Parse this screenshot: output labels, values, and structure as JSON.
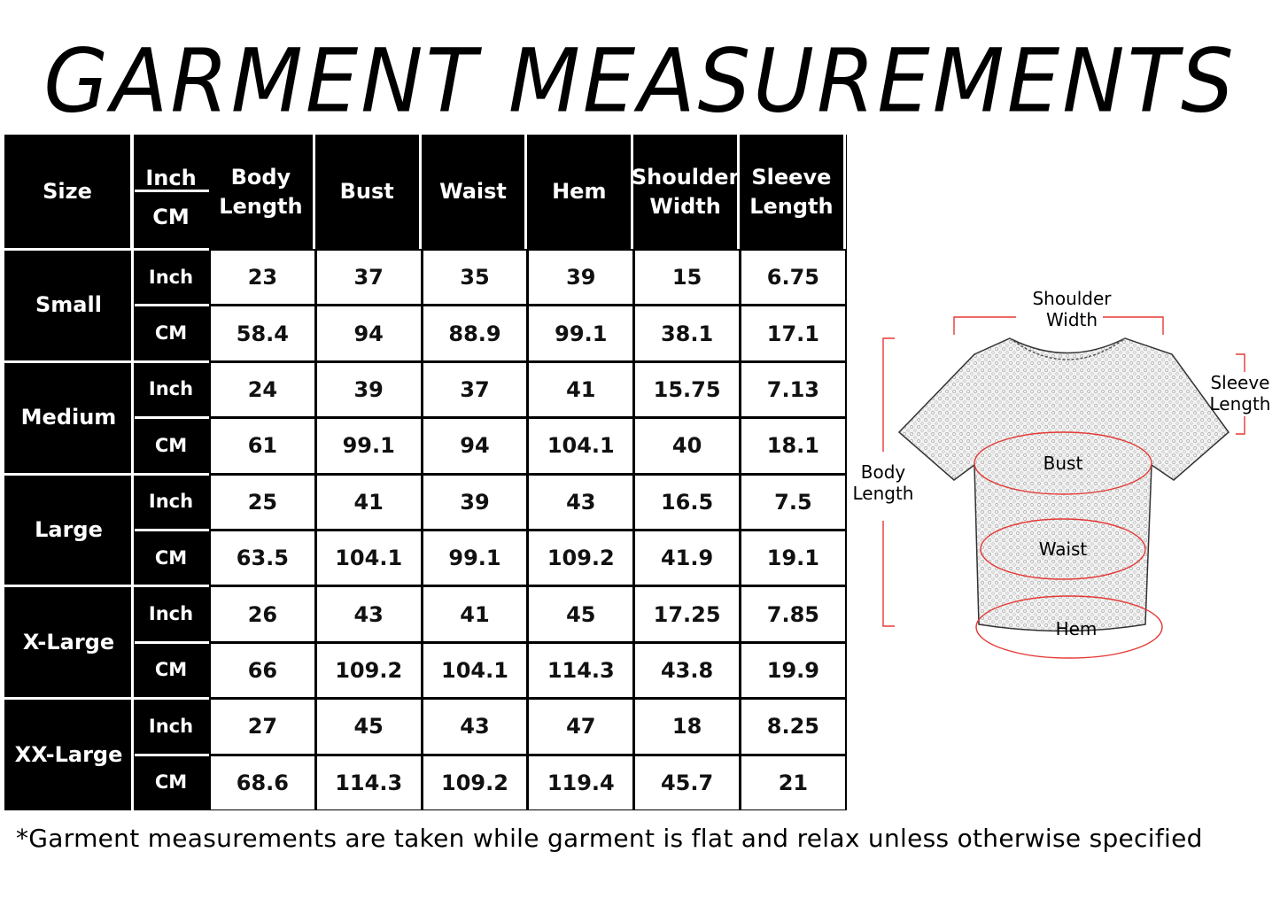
{
  "title": "GARMENT MEASUREMENTS",
  "table": {
    "header": {
      "size": "Size",
      "unit_top": "Inch",
      "unit_bottom": "CM",
      "columns": [
        "Body Length",
        "Bust",
        "Waist",
        "Hem",
        "Shoulder Width",
        "Sleeve Length"
      ]
    },
    "rows": [
      {
        "size": "Small",
        "inch_label": "Inch",
        "cm_label": "CM",
        "inch": [
          "23",
          "37",
          "35",
          "39",
          "15",
          "6.75"
        ],
        "cm": [
          "58.4",
          "94",
          "88.9",
          "99.1",
          "38.1",
          "17.1"
        ]
      },
      {
        "size": "Medium",
        "inch_label": "Inch",
        "cm_label": "CM",
        "inch": [
          "24",
          "39",
          "37",
          "41",
          "15.75",
          "7.13"
        ],
        "cm": [
          "61",
          "99.1",
          "94",
          "104.1",
          "40",
          "18.1"
        ]
      },
      {
        "size": "Large",
        "inch_label": "Inch",
        "cm_label": "CM",
        "inch": [
          "25",
          "41",
          "39",
          "43",
          "16.5",
          "7.5"
        ],
        "cm": [
          "63.5",
          "104.1",
          "99.1",
          "109.2",
          "41.9",
          "19.1"
        ]
      },
      {
        "size": "X-Large",
        "inch_label": "Inch",
        "cm_label": "CM",
        "inch": [
          "26",
          "43",
          "41",
          "45",
          "17.25",
          "7.85"
        ],
        "cm": [
          "66",
          "109.2",
          "104.1",
          "114.3",
          "43.8",
          "19.9"
        ]
      },
      {
        "size": "XX-Large",
        "inch_label": "Inch",
        "cm_label": "CM",
        "inch": [
          "27",
          "45",
          "43",
          "47",
          "18",
          "8.25"
        ],
        "cm": [
          "68.6",
          "114.3",
          "109.2",
          "119.4",
          "45.7",
          "21"
        ]
      }
    ]
  },
  "diagram": {
    "shoulder_width": "Shoulder Width",
    "sleeve_length": "Sleeve Length",
    "body_length": "Body Length",
    "bust": "Bust",
    "waist": "Waist",
    "hem": "Hem",
    "marker_color": "#e53935",
    "icon": "t-shirt-icon"
  },
  "footnote": "*Garment measurements are taken while garment is flat and relax unless otherwise specified"
}
